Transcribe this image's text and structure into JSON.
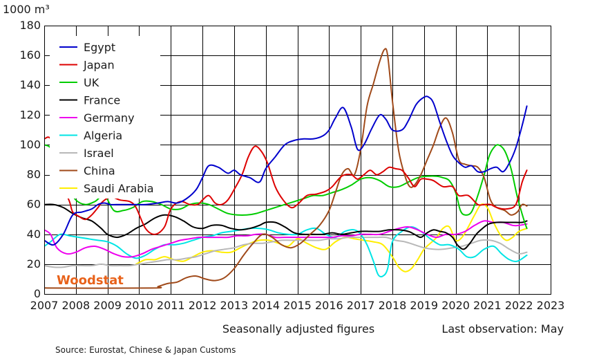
{
  "chart_data": {
    "type": "line",
    "ylabel": "1000 m³",
    "ylim": [
      0,
      180
    ],
    "yticks": [
      0,
      20,
      40,
      60,
      80,
      100,
      120,
      140,
      160,
      180
    ],
    "xlim": [
      2007,
      2023
    ],
    "xticks": [
      2007,
      2008,
      2009,
      2010,
      2011,
      2012,
      2013,
      2014,
      2015,
      2016,
      2017,
      2018,
      2019,
      2020,
      2021,
      2022,
      2023
    ],
    "grid": true,
    "legend_position": "top-left",
    "watermark": "Woodstat",
    "note_center": "Seasonally adjusted figures",
    "note_right": "Last observation: May",
    "source": "Source: Eurostat, Chinese & Japan Customs",
    "series": [
      {
        "name": "Egypt",
        "color": "#0000cc",
        "x": [
          2007.0,
          2007.3,
          2007.6,
          2007.9,
          2008.2,
          2008.5,
          2008.7,
          2008.9,
          2009.1,
          2009.4,
          2009.8,
          2010.2,
          2010.6,
          2010.9,
          2011.2,
          2011.5,
          2011.8,
          2012.0,
          2012.2,
          2012.5,
          2012.8,
          2013.0,
          2013.2,
          2013.5,
          2013.8,
          2014.0,
          2014.3,
          2014.6,
          2014.9,
          2015.2,
          2015.5,
          2015.8,
          2016.0,
          2016.2,
          2016.45,
          2016.7,
          2016.9,
          2017.1,
          2017.35,
          2017.6,
          2017.8,
          2018.0,
          2018.3,
          2018.5,
          2018.75,
          2019.0,
          2019.15,
          2019.3,
          2019.5,
          2019.7,
          2019.9,
          2020.1,
          2020.3,
          2020.5,
          2020.7,
          2020.9,
          2021.1,
          2021.3,
          2021.5,
          2021.7,
          2021.9,
          2022.1,
          2022.25
        ],
        "y": [
          36,
          33,
          40,
          53,
          55,
          57,
          60,
          61,
          60,
          60,
          60,
          60,
          61,
          62,
          61,
          64,
          70,
          78,
          86,
          85,
          81,
          83,
          80,
          78,
          75,
          84,
          92,
          100,
          103,
          104,
          104,
          106,
          110,
          118,
          125,
          112,
          97,
          100,
          111,
          120,
          117,
          110,
          110,
          116,
          127,
          132,
          132,
          128,
          115,
          103,
          93,
          88,
          85,
          86,
          82,
          82,
          84,
          85,
          82,
          88,
          98,
          113,
          126
        ]
      },
      {
        "name": "Japan",
        "color": "#dd0000",
        "x": [
          2007.0,
          2007.2,
          2007.4,
          2007.6,
          2007.8,
          2007.9,
          2008.1,
          2008.3,
          2008.5,
          2008.7,
          2008.85,
          2009.1,
          2009.4,
          2009.7,
          2009.9,
          2010.2,
          2010.5,
          2010.8,
          2011.0,
          2011.3,
          2011.6,
          2011.85,
          2012.0,
          2012.2,
          2012.4,
          2012.6,
          2012.8,
          2013.0,
          2013.25,
          2013.45,
          2013.65,
          2013.85,
          2014.05,
          2014.3,
          2014.55,
          2014.8,
          2015.0,
          2015.3,
          2015.6,
          2015.9,
          2016.1,
          2016.4,
          2016.7,
          2016.9,
          2017.1,
          2017.3,
          2017.5,
          2017.7,
          2017.9,
          2018.1,
          2018.3,
          2018.5,
          2018.7,
          2018.9,
          2019.1,
          2019.3,
          2019.6,
          2019.9,
          2020.1,
          2020.4,
          2020.7,
          2020.9,
          2021.1,
          2021.3,
          2021.6,
          2021.9,
          2022.1,
          2022.25
        ],
        "y": [
          104,
          104,
          88,
          72,
          62,
          55,
          52,
          50,
          53,
          58,
          62,
          65,
          63,
          62,
          58,
          44,
          40,
          45,
          57,
          62,
          60,
          60,
          63,
          66,
          61,
          60,
          63,
          70,
          80,
          92,
          99,
          96,
          88,
          72,
          63,
          58,
          60,
          66,
          67,
          69,
          72,
          79,
          80,
          77,
          80,
          83,
          80,
          82,
          85,
          84,
          83,
          78,
          72,
          77,
          77,
          76,
          72,
          72,
          66,
          66,
          60,
          60,
          60,
          58,
          57,
          60,
          75,
          83
        ]
      },
      {
        "name": "UK",
        "color": "#00cc00",
        "x": [
          2007.0,
          2007.2,
          2007.4,
          2007.6,
          2007.8,
          2008.0,
          2008.3,
          2008.6,
          2008.9,
          2009.2,
          2009.5,
          2009.8,
          2010.1,
          2010.4,
          2010.7,
          2011.0,
          2011.3,
          2011.6,
          2011.9,
          2012.2,
          2012.5,
          2012.8,
          2013.1,
          2013.4,
          2013.7,
          2014.0,
          2014.3,
          2014.6,
          2014.9,
          2015.2,
          2015.5,
          2015.8,
          2016.1,
          2016.4,
          2016.7,
          2017.0,
          2017.3,
          2017.6,
          2017.9,
          2018.2,
          2018.5,
          2018.8,
          2019.1,
          2019.4,
          2019.6,
          2019.8,
          2020.0,
          2020.15,
          2020.3,
          2020.5,
          2020.7,
          2020.9,
          2021.05,
          2021.2,
          2021.35,
          2021.55,
          2021.75,
          2021.95,
          2022.15,
          2022.25
        ],
        "y": [
          100,
          98,
          88,
          78,
          70,
          63,
          60,
          62,
          66,
          56,
          56,
          58,
          62,
          62,
          60,
          57,
          57,
          60,
          61,
          60,
          57,
          54,
          53,
          53,
          54,
          56,
          58,
          60,
          62,
          64,
          66,
          66,
          68,
          70,
          73,
          77,
          78,
          76,
          72,
          72,
          75,
          78,
          79,
          79,
          78,
          76,
          68,
          56,
          53,
          55,
          66,
          80,
          92,
          98,
          100,
          96,
          84,
          65,
          50,
          44
        ]
      },
      {
        "name": "France",
        "color": "#000000",
        "x": [
          2007.0,
          2007.3,
          2007.6,
          2007.9,
          2008.2,
          2008.5,
          2008.8,
          2009.0,
          2009.3,
          2009.6,
          2009.9,
          2010.2,
          2010.5,
          2010.8,
          2011.1,
          2011.4,
          2011.7,
          2012.0,
          2012.3,
          2012.6,
          2012.9,
          2013.2,
          2013.5,
          2013.8,
          2014.0,
          2014.3,
          2014.6,
          2014.9,
          2015.2,
          2015.5,
          2015.8,
          2016.1,
          2016.4,
          2016.7,
          2017.0,
          2017.3,
          2017.6,
          2017.9,
          2018.2,
          2018.5,
          2018.7,
          2018.9,
          2019.1,
          2019.3,
          2019.5,
          2019.7,
          2019.9,
          2020.05,
          2020.25,
          2020.45,
          2020.65,
          2020.85,
          2021.05,
          2021.3,
          2021.6,
          2021.9,
          2022.1,
          2022.25
        ],
        "y": [
          60,
          60,
          58,
          54,
          51,
          49,
          44,
          40,
          38,
          40,
          44,
          47,
          51,
          53,
          52,
          49,
          45,
          44,
          46,
          46,
          44,
          43,
          44,
          46,
          48,
          48,
          45,
          41,
          40,
          40,
          40,
          41,
          40,
          41,
          42,
          42,
          42,
          43,
          43,
          42,
          40,
          38,
          41,
          43,
          42,
          41,
          38,
          33,
          30,
          34,
          40,
          44,
          47,
          48,
          48,
          48,
          48,
          49
        ]
      },
      {
        "name": "Germany",
        "color": "#ee00ee",
        "x": [
          2007.0,
          2007.2,
          2007.4,
          2007.7,
          2008.0,
          2008.3,
          2008.6,
          2008.9,
          2009.2,
          2009.5,
          2009.8,
          2010.1,
          2010.4,
          2010.7,
          2011.0,
          2011.3,
          2011.6,
          2011.9,
          2012.2,
          2012.5,
          2012.8,
          2013.1,
          2013.4,
          2013.7,
          2014.0,
          2014.3,
          2014.6,
          2014.9,
          2015.2,
          2015.5,
          2015.8,
          2016.1,
          2016.4,
          2016.7,
          2017.0,
          2017.3,
          2017.6,
          2017.9,
          2018.2,
          2018.5,
          2018.8,
          2019.1,
          2019.4,
          2019.7,
          2020.0,
          2020.3,
          2020.6,
          2020.9,
          2021.2,
          2021.5,
          2021.8,
          2022.0,
          2022.25
        ],
        "y": [
          43,
          40,
          31,
          27,
          28,
          31,
          32,
          30,
          27,
          25,
          25,
          27,
          30,
          32,
          34,
          36,
          37,
          38,
          38,
          38,
          38,
          39,
          39,
          40,
          40,
          38,
          38,
          38,
          38,
          38,
          38,
          38,
          39,
          39,
          40,
          40,
          40,
          42,
          44,
          45,
          43,
          40,
          38,
          40,
          40,
          42,
          46,
          49,
          48,
          48,
          46,
          46,
          47
        ]
      },
      {
        "name": "Algeria",
        "color": "#00e5e5",
        "x": [
          2007.0,
          2007.2,
          2007.5,
          2007.8,
          2008.1,
          2008.4,
          2008.7,
          2009.0,
          2009.3,
          2009.6,
          2009.9,
          2010.2,
          2010.5,
          2010.8,
          2011.1,
          2011.4,
          2011.7,
          2012.0,
          2012.3,
          2012.6,
          2012.9,
          2013.2,
          2013.5,
          2013.8,
          2014.1,
          2014.4,
          2014.7,
          2015.0,
          2015.3,
          2015.6,
          2015.9,
          2016.2,
          2016.5,
          2016.8,
          2017.0,
          2017.2,
          2017.4,
          2017.55,
          2017.7,
          2017.85,
          2018.0,
          2018.3,
          2018.6,
          2018.9,
          2019.2,
          2019.5,
          2019.8,
          2020.1,
          2020.35,
          2020.6,
          2020.9,
          2021.2,
          2021.45,
          2021.7,
          2021.95,
          2022.25
        ],
        "y": [
          32,
          35,
          40,
          39,
          38,
          37,
          36,
          35,
          32,
          27,
          24,
          26,
          30,
          33,
          33,
          34,
          36,
          38,
          39,
          41,
          42,
          43,
          44,
          44,
          43,
          41,
          40,
          40,
          43,
          44,
          40,
          38,
          42,
          43,
          40,
          33,
          22,
          13,
          12,
          17,
          35,
          42,
          45,
          42,
          37,
          33,
          33,
          30,
          25,
          25,
          30,
          32,
          27,
          23,
          22,
          26
        ]
      },
      {
        "name": "Israel",
        "color": "#b8b8b8",
        "x": [
          2007.0,
          2007.3,
          2007.6,
          2007.9,
          2008.2,
          2008.5,
          2008.8,
          2009.1,
          2009.4,
          2009.7,
          2010.0,
          2010.3,
          2010.6,
          2010.9,
          2011.2,
          2011.5,
          2011.8,
          2012.1,
          2012.4,
          2012.7,
          2013.0,
          2013.3,
          2013.6,
          2013.9,
          2014.2,
          2014.5,
          2014.8,
          2015.1,
          2015.4,
          2015.7,
          2016.0,
          2016.3,
          2016.6,
          2016.9,
          2017.2,
          2017.5,
          2017.8,
          2018.1,
          2018.4,
          2018.7,
          2019.0,
          2019.3,
          2019.6,
          2019.9,
          2020.2,
          2020.5,
          2020.8,
          2021.1,
          2021.4,
          2021.7,
          2022.0,
          2022.25
        ],
        "y": [
          19,
          18,
          18,
          19,
          19,
          19,
          20,
          19,
          19,
          19,
          20,
          21,
          22,
          23,
          23,
          24,
          25,
          27,
          29,
          30,
          31,
          33,
          34,
          34,
          35,
          36,
          36,
          36,
          36,
          36,
          37,
          37,
          38,
          38,
          38,
          38,
          38,
          36,
          35,
          33,
          31,
          30,
          30,
          31,
          32,
          34,
          36,
          36,
          34,
          30,
          27,
          28
        ]
      },
      {
        "name": "China",
        "color": "#a04a1a",
        "x": [
          2007.0,
          2007.1,
          2010.4,
          2010.6,
          2010.9,
          2011.2,
          2011.5,
          2011.8,
          2012.1,
          2012.4,
          2012.7,
          2013.0,
          2013.3,
          2013.6,
          2013.9,
          2014.2,
          2014.5,
          2014.8,
          2015.1,
          2015.4,
          2015.7,
          2016.0,
          2016.2,
          2016.4,
          2016.6,
          2016.8,
          2017.0,
          2017.2,
          2017.4,
          2017.6,
          2017.75,
          2017.85,
          2018.0,
          2018.2,
          2018.4,
          2018.55,
          2018.7,
          2018.9,
          2019.1,
          2019.3,
          2019.5,
          2019.7,
          2019.9,
          2020.1,
          2020.3,
          2020.5,
          2020.7,
          2020.9,
          2021.1,
          2021.3,
          2021.55,
          2021.75,
          2021.95,
          2022.1,
          2022.25
        ],
        "y": [
          5,
          4,
          4,
          5,
          7,
          8,
          11,
          12,
          10,
          9,
          11,
          17,
          26,
          34,
          40,
          38,
          33,
          31,
          34,
          40,
          46,
          56,
          68,
          80,
          84,
          80,
          97,
          126,
          141,
          156,
          164,
          160,
          130,
          96,
          79,
          72,
          73,
          80,
          90,
          100,
          112,
          118,
          108,
          90,
          87,
          86,
          85,
          78,
          63,
          58,
          56,
          53,
          55,
          60,
          59
        ]
      },
      {
        "name": "Saudi Arabia",
        "color": "#ffee00",
        "x": [
          2009.9,
          2010.2,
          2010.5,
          2010.8,
          2011.1,
          2011.4,
          2011.7,
          2012.0,
          2012.3,
          2012.6,
          2012.9,
          2013.2,
          2013.5,
          2013.8,
          2014.1,
          2014.4,
          2014.7,
          2015.0,
          2015.3,
          2015.6,
          2015.9,
          2016.2,
          2016.5,
          2016.8,
          2017.1,
          2017.4,
          2017.7,
          2018.0,
          2018.2,
          2018.4,
          2018.6,
          2018.8,
          2019.0,
          2019.2,
          2019.4,
          2019.6,
          2019.8,
          2020.0,
          2020.2,
          2020.4,
          2020.6,
          2020.8,
          2021.0,
          2021.2,
          2021.4,
          2021.6,
          2021.8,
          2022.0,
          2022.25
        ],
        "y": [
          20,
          23,
          23,
          25,
          23,
          22,
          25,
          28,
          29,
          28,
          28,
          31,
          34,
          36,
          36,
          34,
          32,
          37,
          34,
          31,
          30,
          35,
          38,
          37,
          36,
          35,
          33,
          25,
          18,
          15,
          17,
          23,
          30,
          34,
          38,
          44,
          45,
          36,
          38,
          45,
          53,
          60,
          58,
          48,
          40,
          36,
          38,
          42,
          44
        ]
      }
    ]
  }
}
